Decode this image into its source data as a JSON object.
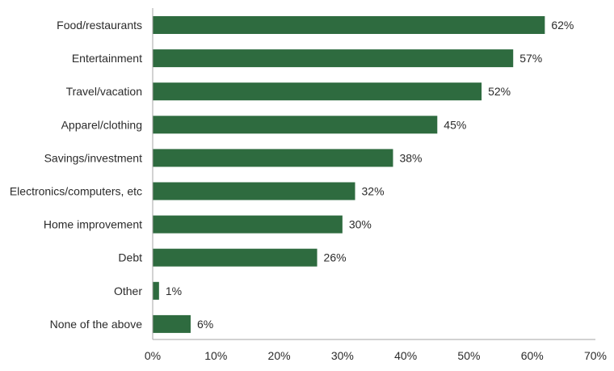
{
  "chart_data": {
    "type": "bar",
    "orientation": "horizontal",
    "title": "",
    "xlabel": "",
    "ylabel": "",
    "categories": [
      "Food/restaurants",
      "Entertainment",
      "Travel/vacation",
      "Apparel/clothing",
      "Savings/investment",
      "Electronics/computers, etc",
      "Home improvement",
      "Debt",
      "Other",
      "None of the above"
    ],
    "values": [
      62,
      57,
      52,
      45,
      38,
      32,
      30,
      26,
      1,
      6
    ],
    "value_labels": [
      "62%",
      "57%",
      "52%",
      "45%",
      "38%",
      "32%",
      "30%",
      "26%",
      "1%",
      "6%"
    ],
    "xlim": [
      0,
      70
    ],
    "xticks": [
      0,
      10,
      20,
      30,
      40,
      50,
      60,
      70
    ],
    "xtick_labels": [
      "0%",
      "10%",
      "20%",
      "30%",
      "40%",
      "50%",
      "60%",
      "70%"
    ],
    "grid": false,
    "legend": "none",
    "bar_color": "#2e6b3f",
    "axis_color": "#a6a6a6"
  }
}
